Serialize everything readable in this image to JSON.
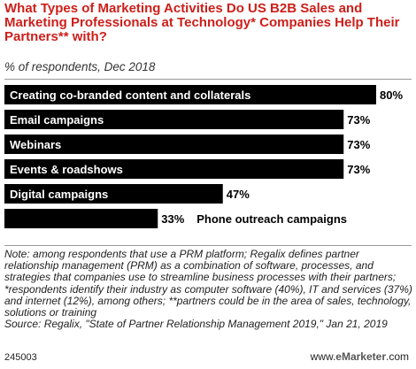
{
  "header": {
    "title": "What Types of Marketing Activities Do US B2B Sales and Marketing Professionals at Technology* Companies Help Their Partners** with?",
    "subtitle": "% of respondents, Dec 2018"
  },
  "chart_data": {
    "type": "bar",
    "orientation": "horizontal",
    "categories": [
      "Creating co-branded content and collaterals",
      "Email campaigns",
      "Webinars",
      "Events & roadshows",
      "Digital campaigns",
      "Phone outreach campaigns"
    ],
    "values": [
      80,
      73,
      73,
      73,
      47,
      33
    ],
    "value_labels": [
      "80%",
      "73%",
      "73%",
      "73%",
      "47%",
      "33%"
    ],
    "xlim": [
      0,
      80
    ],
    "bar_color": "#000000"
  },
  "footer": {
    "note": "Note: among respondents that use a PRM platform; Regalix defines partner relationship management (PRM) as a combination of software, processes, and strategies that companies use to streamline business processes with their partners; *respondents identify their industry as computer software (40%), IT and services (37%) and internet (12%), among others; **partners could be in the area of sales, technology, solutions or training",
    "source": "Source: Regalix, \"State of Partner Relationship Management 2019,\" Jan 21, 2019",
    "chart_id": "245003",
    "brand_prefix": "www.",
    "brand_name": "eMarketer",
    "brand_suffix": ".com"
  },
  "colors": {
    "title": "#cc1f1a",
    "bar": "#000000"
  }
}
